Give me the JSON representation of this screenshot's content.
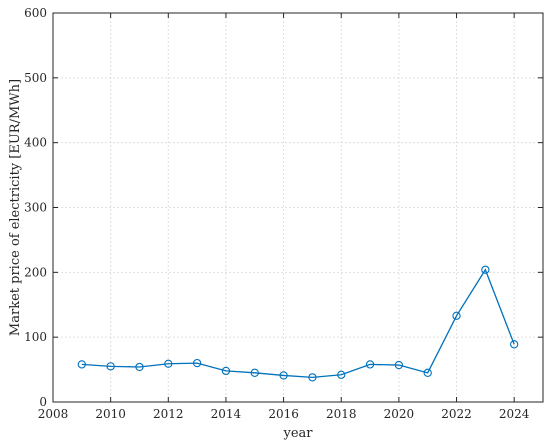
{
  "chart_data": {
    "type": "line",
    "title": "",
    "xlabel": "year",
    "ylabel": "Market price of electricity [EUR/MWh]",
    "xlim": [
      2008,
      2025
    ],
    "ylim": [
      0,
      600
    ],
    "xticks": [
      2008,
      2010,
      2012,
      2014,
      2016,
      2018,
      2020,
      2022,
      2024
    ],
    "yticks": [
      0,
      100,
      200,
      300,
      400,
      500,
      600
    ],
    "grid": true,
    "marker": "circle",
    "series_color": "#0072bd",
    "x": [
      2009,
      2010,
      2011,
      2012,
      2013,
      2014,
      2015,
      2016,
      2017,
      2018,
      2019,
      2020,
      2021,
      2022,
      2023,
      2024
    ],
    "series": [
      {
        "values": [
          58,
          55,
          54,
          59,
          60,
          48,
          45,
          41,
          38,
          42,
          58,
          57,
          45,
          133,
          204,
          89
        ]
      }
    ]
  }
}
